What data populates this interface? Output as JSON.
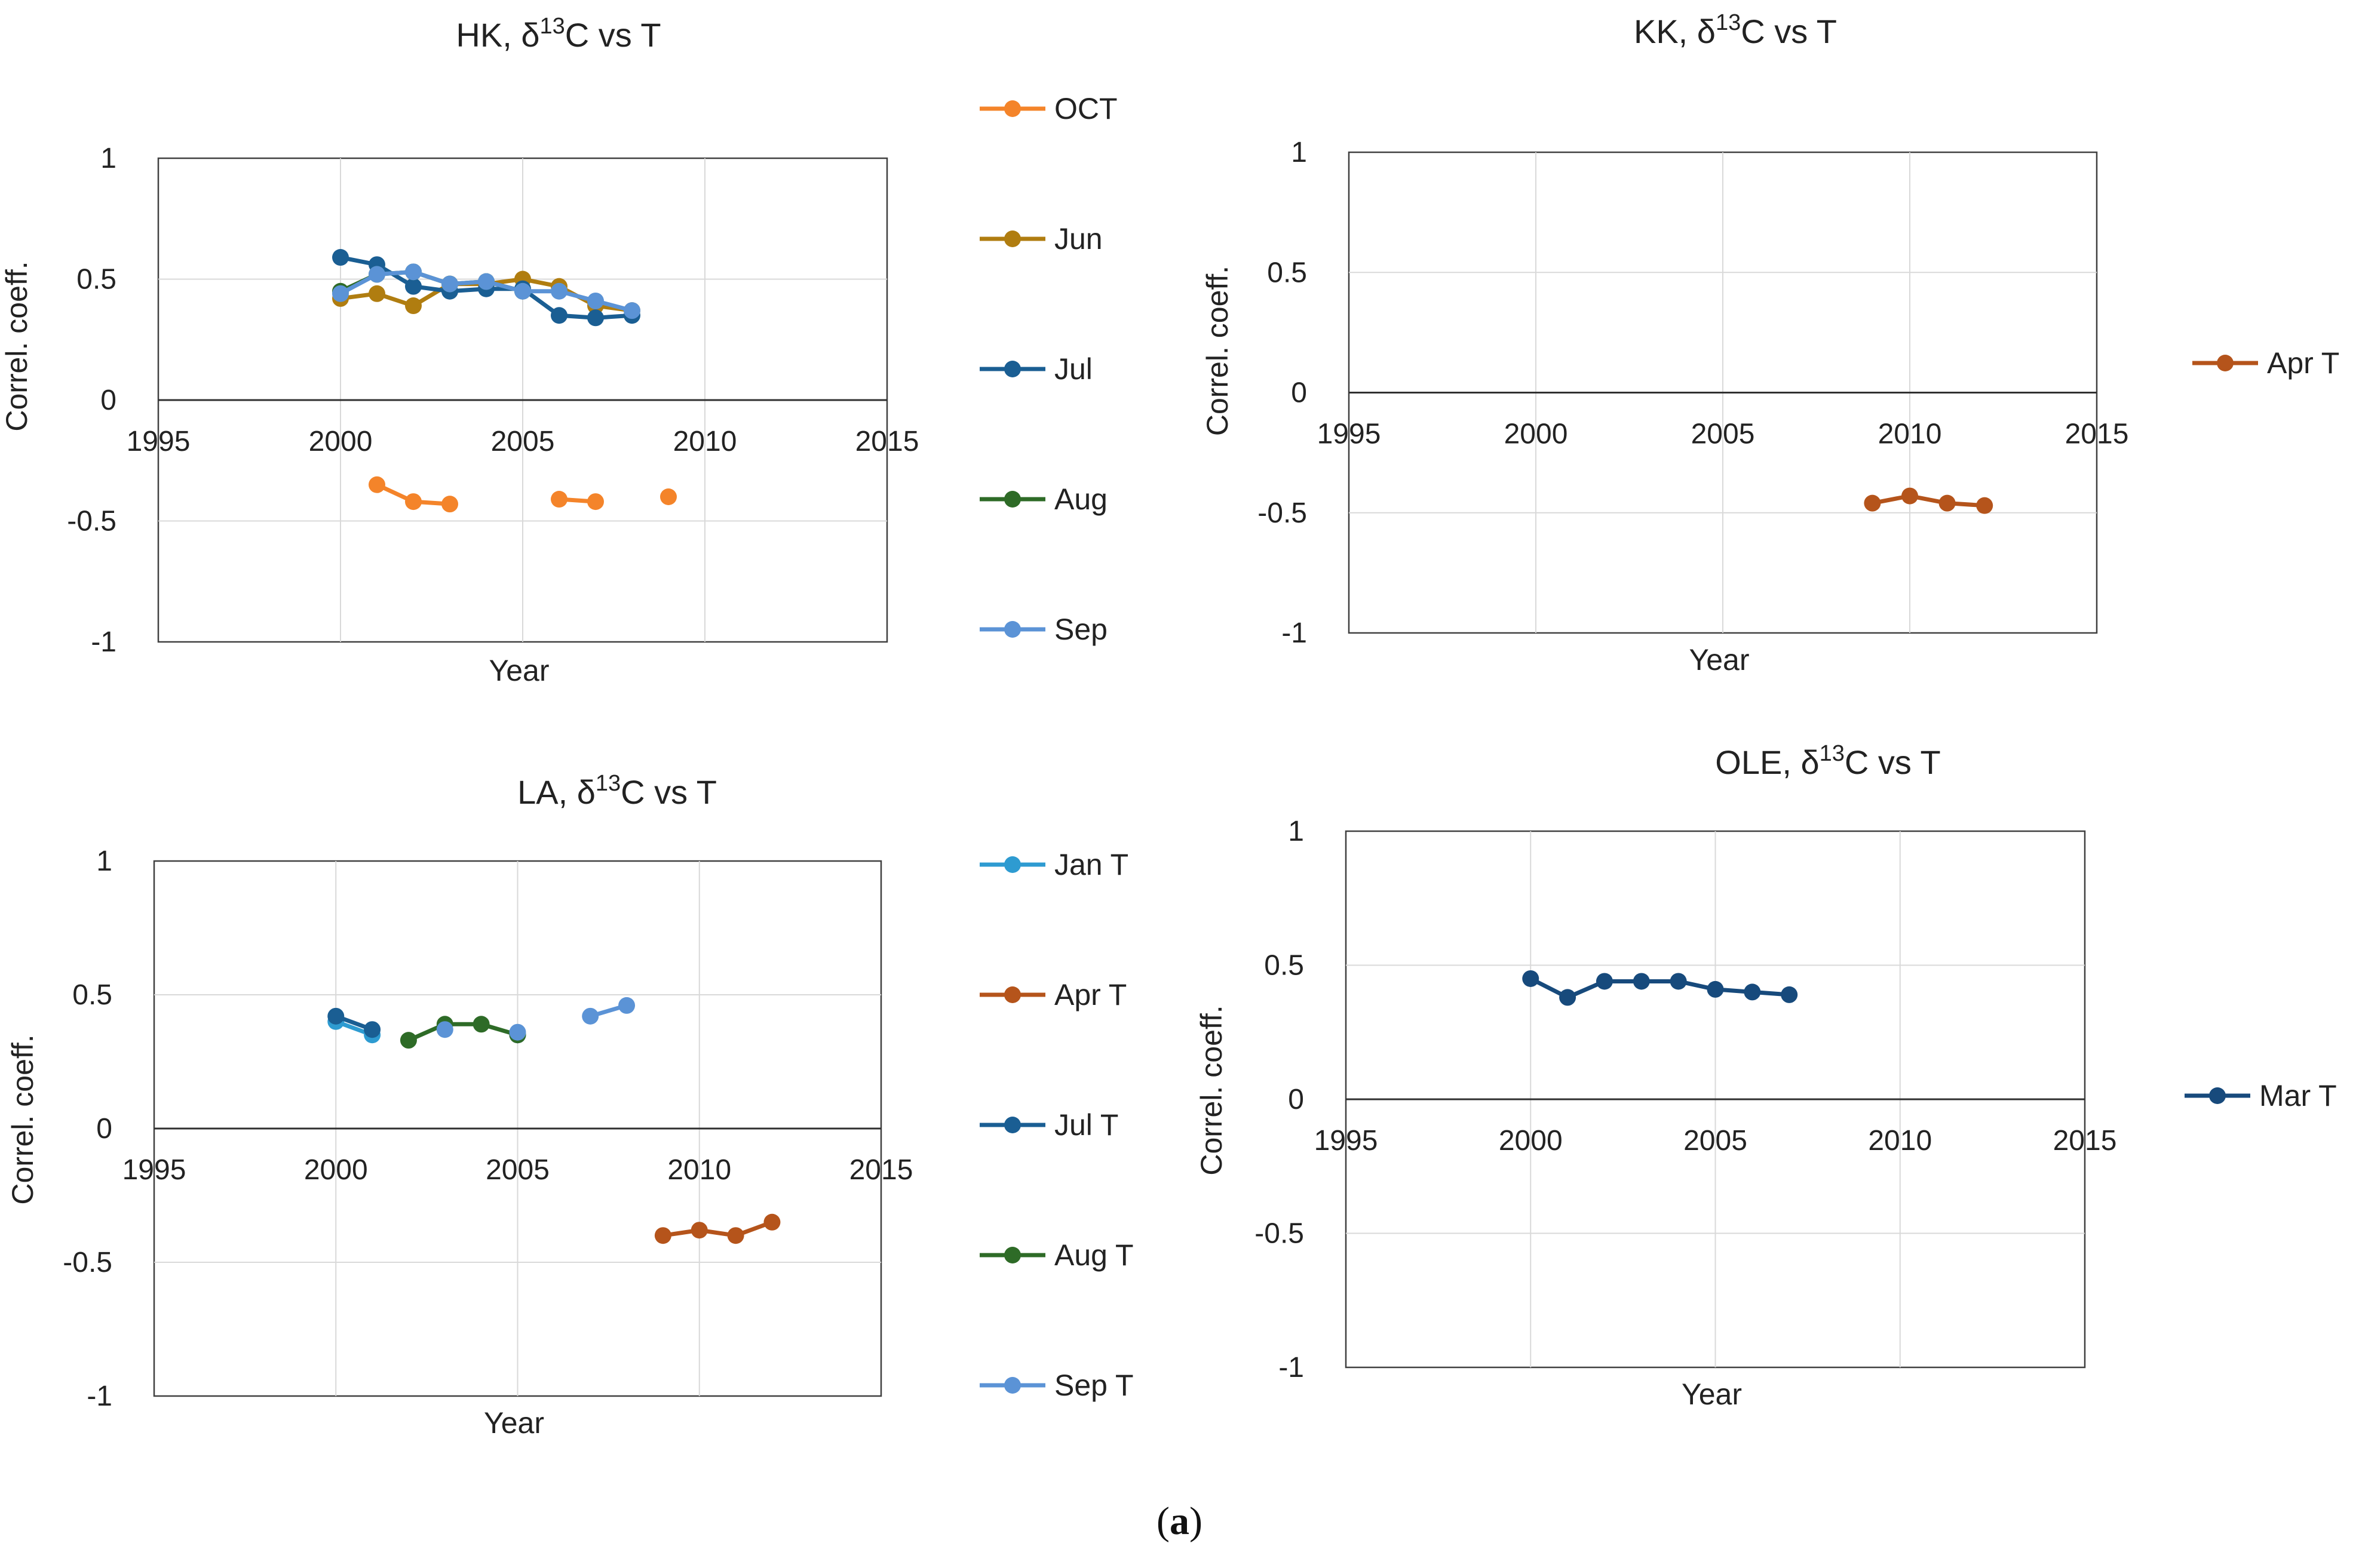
{
  "caption": {
    "open": "(",
    "letter": "a",
    "close": ")"
  },
  "chart_data": [
    {
      "type": "line",
      "title": "HK, δ¹³C vs T",
      "title_parts": {
        "prefix": "HK, δ",
        "sup": "13",
        "suffix": "C vs T"
      },
      "xlabel": "Year",
      "ylabel": "Correl. coeff.",
      "xlim": [
        1995,
        2015
      ],
      "ylim": [
        -1,
        1
      ],
      "xticks": [
        1995,
        2000,
        2005,
        2010,
        2015
      ],
      "yticks": [
        1,
        0.5,
        0,
        -0.5,
        -1
      ],
      "grid": true,
      "legend_position": "right",
      "series": [
        {
          "name": "OCT",
          "color": "#F4842A",
          "segments": [
            [
              [
                2001,
                -0.35
              ],
              [
                2002,
                -0.42
              ],
              [
                2003,
                -0.43
              ]
            ],
            [
              [
                2006,
                -0.41
              ],
              [
                2007,
                -0.42
              ]
            ],
            [
              [
                2009,
                -0.4
              ]
            ]
          ]
        },
        {
          "name": "Jun",
          "color": "#B07D10",
          "segments": [
            [
              [
                2000,
                0.42
              ],
              [
                2001,
                0.44
              ],
              [
                2002,
                0.39
              ],
              [
                2003,
                0.48
              ],
              [
                2004,
                0.48
              ],
              [
                2005,
                0.5
              ],
              [
                2006,
                0.47
              ],
              [
                2007,
                0.39
              ],
              [
                2008,
                0.37
              ]
            ]
          ]
        },
        {
          "name": "Jul",
          "color": "#1A5E93",
          "segments": [
            [
              [
                2000,
                0.59
              ],
              [
                2001,
                0.56
              ],
              [
                2002,
                0.47
              ],
              [
                2003,
                0.45
              ],
              [
                2004,
                0.46
              ],
              [
                2005,
                0.46
              ],
              [
                2006,
                0.35
              ],
              [
                2007,
                0.34
              ],
              [
                2008,
                0.35
              ]
            ]
          ]
        },
        {
          "name": "Aug",
          "color": "#2E6B27",
          "segments": [
            [
              [
                2000,
                0.45
              ],
              [
                2001,
                0.52
              ],
              [
                2002,
                0.53
              ],
              [
                2003,
                0.48
              ],
              [
                2004,
                0.49
              ],
              [
                2005,
                0.45
              ]
            ]
          ]
        },
        {
          "name": "Sep",
          "color": "#5B93D6",
          "segments": [
            [
              [
                2000,
                0.44
              ],
              [
                2001,
                0.52
              ],
              [
                2002,
                0.53
              ],
              [
                2003,
                0.48
              ],
              [
                2004,
                0.49
              ],
              [
                2005,
                0.45
              ],
              [
                2006,
                0.45
              ],
              [
                2007,
                0.41
              ],
              [
                2008,
                0.37
              ]
            ]
          ]
        }
      ]
    },
    {
      "type": "line",
      "title": "KK, δ¹³C vs T",
      "title_parts": {
        "prefix": "KK, δ",
        "sup": "13",
        "suffix": "C vs T"
      },
      "xlabel": "Year",
      "ylabel": "Correl. coeff.",
      "xlim": [
        1995,
        2015
      ],
      "ylim": [
        -1,
        1
      ],
      "xticks": [
        1995,
        2000,
        2005,
        2010,
        2015
      ],
      "yticks": [
        1,
        0.5,
        0,
        -0.5,
        -1
      ],
      "grid": true,
      "legend_position": "right",
      "series": [
        {
          "name": "Apr T",
          "color": "#B5541B",
          "segments": [
            [
              [
                2009,
                -0.46
              ],
              [
                2010,
                -0.43
              ],
              [
                2011,
                -0.46
              ],
              [
                2012,
                -0.47
              ]
            ]
          ]
        }
      ]
    },
    {
      "type": "line",
      "title": "LA, δ¹³C vs T",
      "title_parts": {
        "prefix": "LA, δ",
        "sup": "13",
        "suffix": "C vs T"
      },
      "xlabel": "Year",
      "ylabel": "Correl. coeff.",
      "xlim": [
        1995,
        2015
      ],
      "ylim": [
        -1,
        1
      ],
      "xticks": [
        1995,
        2000,
        2005,
        2010,
        2015
      ],
      "yticks": [
        1,
        0.5,
        0,
        -0.5,
        -1
      ],
      "grid": true,
      "legend_position": "right",
      "series": [
        {
          "name": "Jan T",
          "color": "#2E9BD1",
          "segments": [
            [
              [
                2000,
                0.4
              ],
              [
                2001,
                0.35
              ]
            ]
          ]
        },
        {
          "name": "Apr T",
          "color": "#B5541B",
          "segments": [
            [
              [
                2009,
                -0.4
              ],
              [
                2010,
                -0.38
              ],
              [
                2011,
                -0.4
              ],
              [
                2012,
                -0.35
              ]
            ]
          ]
        },
        {
          "name": "Jul T",
          "color": "#1A5E93",
          "segments": [
            [
              [
                2000,
                0.42
              ],
              [
                2001,
                0.37
              ]
            ],
            [
              [
                2005,
                0.35
              ]
            ]
          ]
        },
        {
          "name": "Aug T",
          "color": "#2E6B27",
          "segments": [
            [
              [
                2002,
                0.33
              ],
              [
                2003,
                0.39
              ],
              [
                2004,
                0.39
              ],
              [
                2005,
                0.35
              ]
            ]
          ]
        },
        {
          "name": "Sep T",
          "color": "#5B93D6",
          "segments": [
            [
              [
                2003,
                0.37
              ]
            ],
            [
              [
                2005,
                0.36
              ]
            ],
            [
              [
                2007,
                0.42
              ],
              [
                2008,
                0.46
              ]
            ]
          ]
        }
      ]
    },
    {
      "type": "line",
      "title": "OLE, δ¹³C vs T",
      "title_parts": {
        "prefix": "OLE, δ",
        "sup": "13",
        "suffix": "C vs T"
      },
      "xlabel": "Year",
      "ylabel": "Correl. coeff.",
      "xlim": [
        1995,
        2015
      ],
      "ylim": [
        -1,
        1
      ],
      "xticks": [
        1995,
        2000,
        2005,
        2010,
        2015
      ],
      "yticks": [
        1,
        0.5,
        0,
        -0.5,
        -1
      ],
      "grid": true,
      "legend_position": "right",
      "series": [
        {
          "name": "Mar T",
          "color": "#174A7C",
          "segments": [
            [
              [
                2000,
                0.45
              ],
              [
                2001,
                0.38
              ],
              [
                2002,
                0.44
              ],
              [
                2003,
                0.44
              ],
              [
                2004,
                0.44
              ],
              [
                2005,
                0.41
              ],
              [
                2006,
                0.4
              ],
              [
                2007,
                0.39
              ]
            ]
          ]
        }
      ]
    }
  ]
}
